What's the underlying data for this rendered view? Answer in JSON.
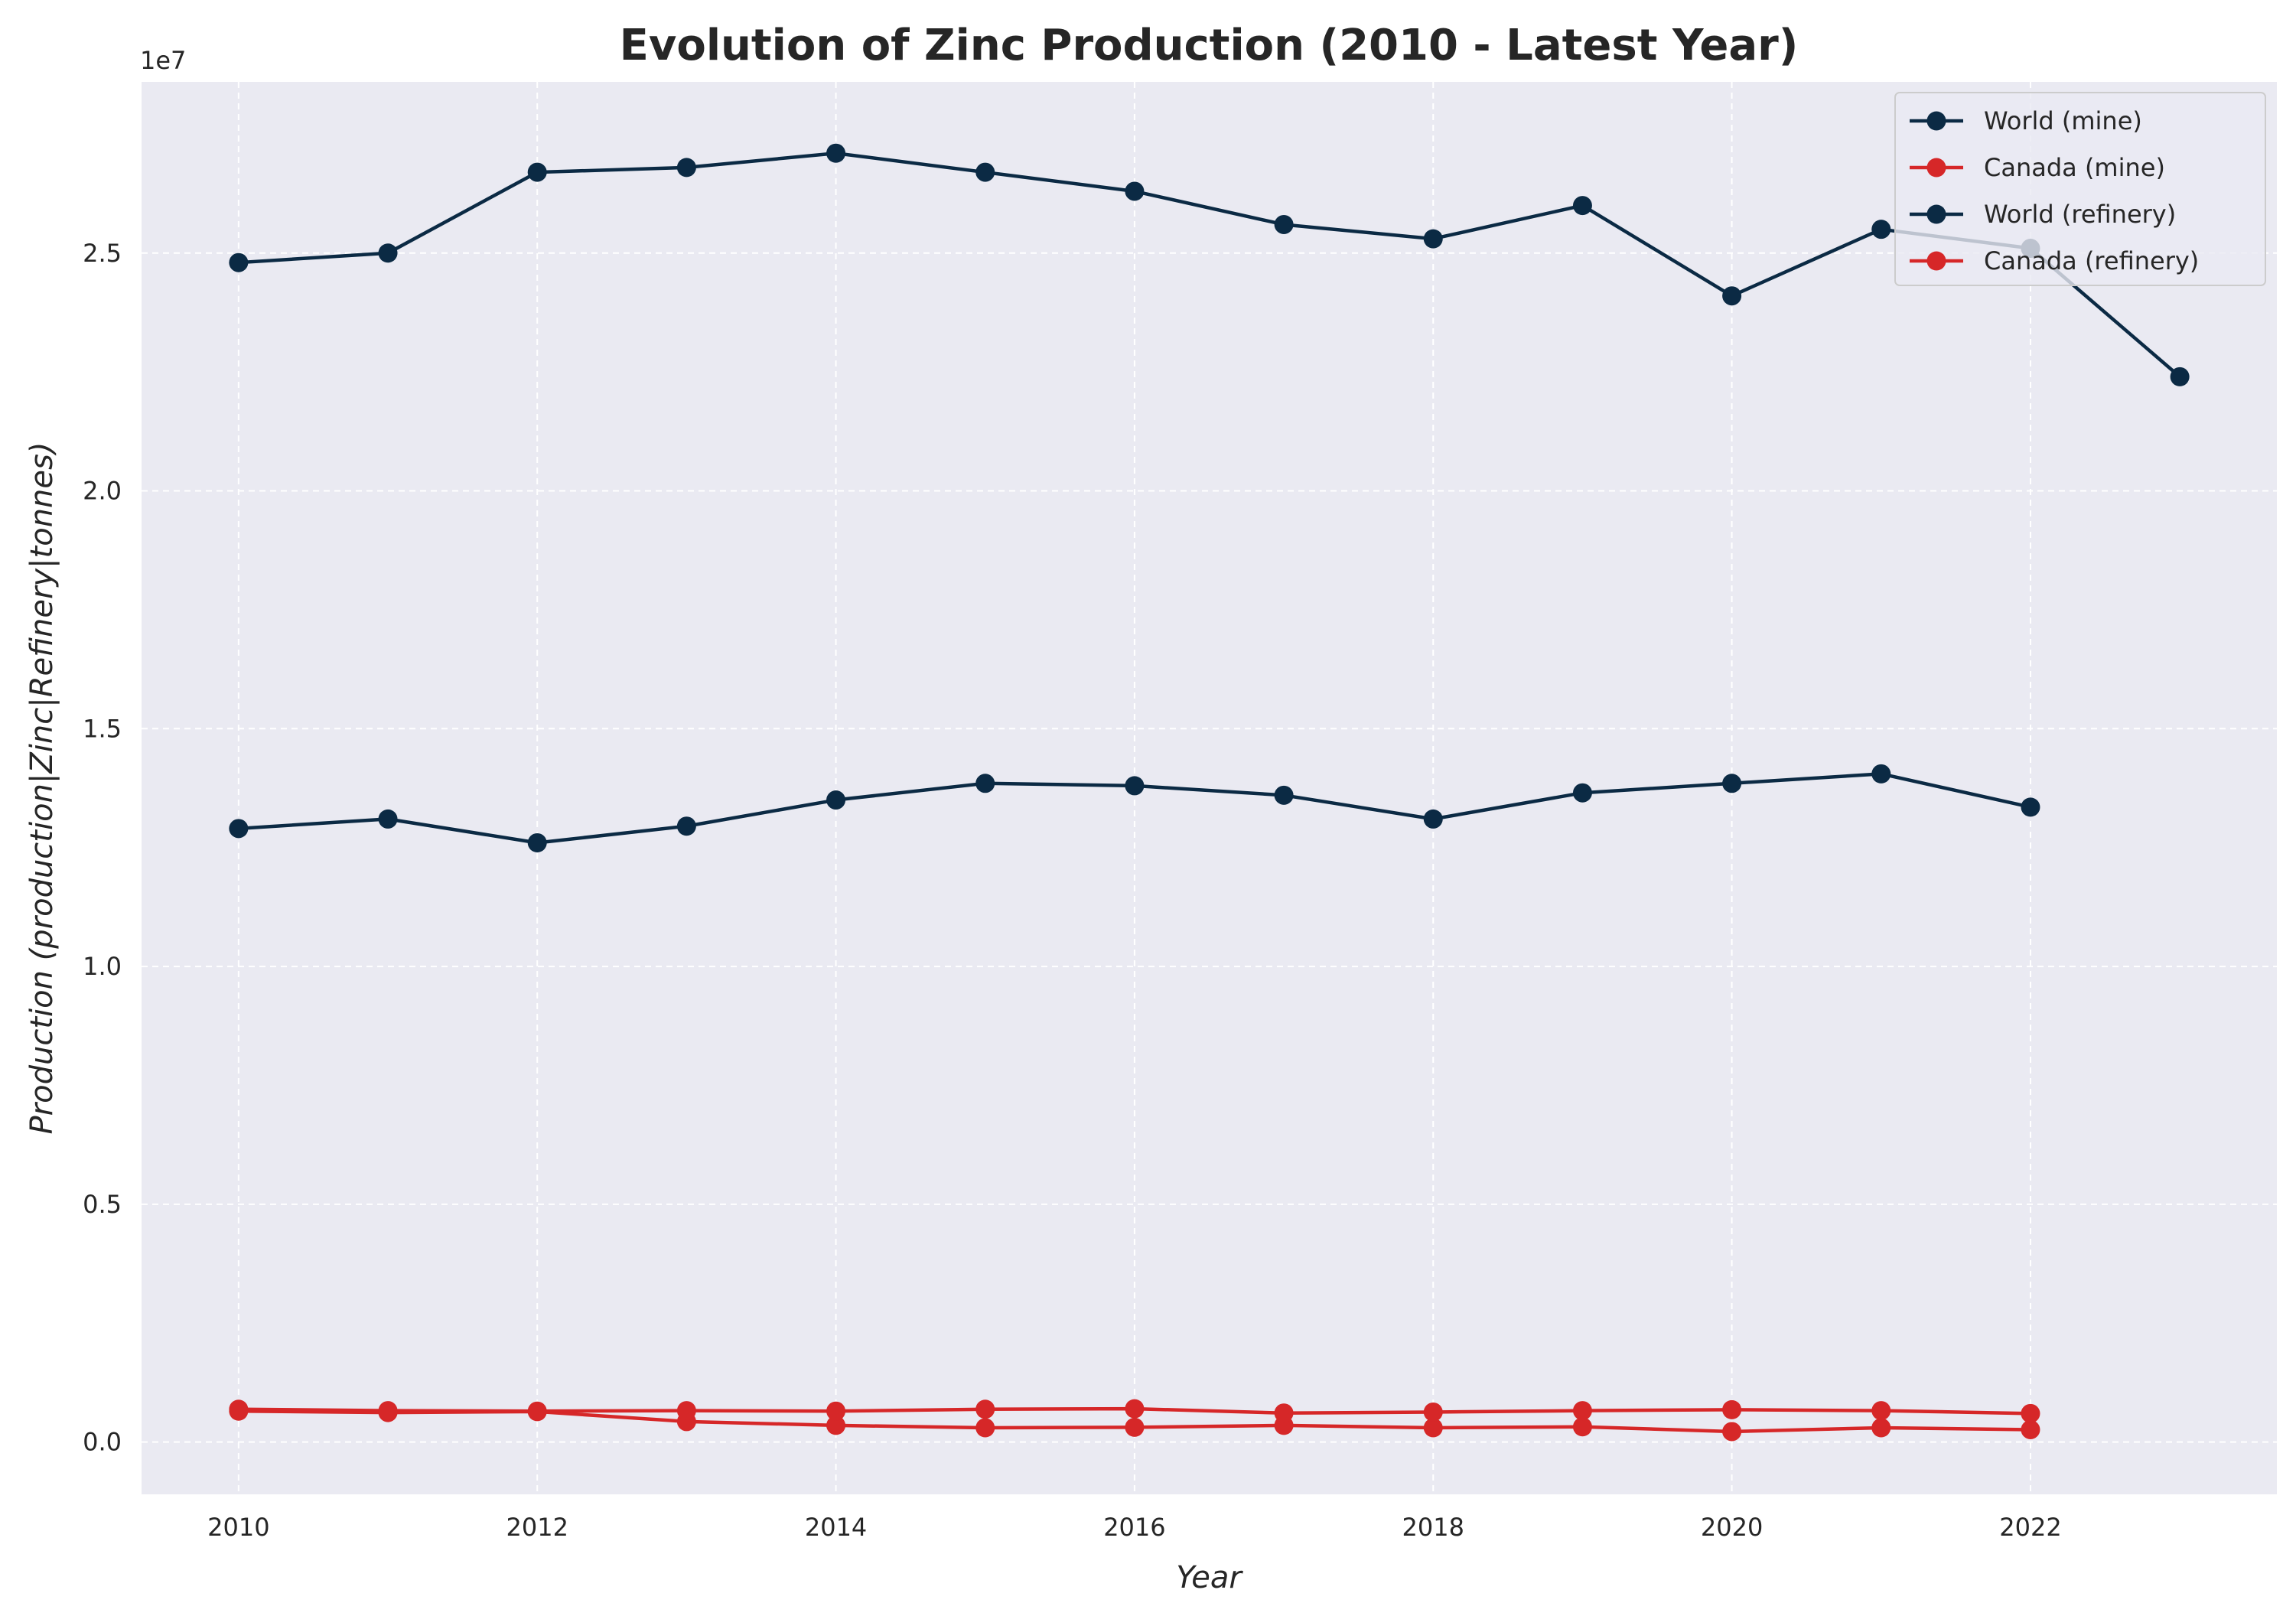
{
  "chart_data": {
    "type": "line",
    "title": "Evolution of Zinc Production (2010 - Latest Year)",
    "xlabel": "Year",
    "ylabel": "Production (production|Zinc|Refinery|tonnes)",
    "y_offset_label": "1e7",
    "xlim": [
      2009.35,
      2023.65
    ],
    "ylim": [
      -1100000,
      28600000
    ],
    "x_ticks": [
      2010,
      2012,
      2014,
      2016,
      2018,
      2020,
      2022
    ],
    "x_tick_labels": [
      "2010",
      "2012",
      "2014",
      "2016",
      "2018",
      "2020",
      "2022"
    ],
    "y_ticks": [
      0,
      5000000,
      10000000,
      15000000,
      20000000,
      25000000
    ],
    "y_tick_labels": [
      "0.0",
      "0.5",
      "1.0",
      "1.5",
      "2.0",
      "2.5"
    ],
    "grid": true,
    "grid_style": "dashed",
    "plot_background": "#eaeaf2",
    "legend_position": "top-right",
    "series": [
      {
        "name": "World (mine)",
        "color": "#0b2a44",
        "x": [
          2010,
          2011,
          2012,
          2013,
          2014,
          2015,
          2016,
          2017,
          2018,
          2019,
          2020,
          2021,
          2022,
          2023
        ],
        "y": [
          24800000,
          25000000,
          26700000,
          26800000,
          27100000,
          26700000,
          26300000,
          25600000,
          25300000,
          26000000,
          24100000,
          25500000,
          25100000,
          22400000
        ]
      },
      {
        "name": "Canada (mine)",
        "color": "#d62728",
        "x": [
          2010,
          2011,
          2012,
          2013,
          2014,
          2015,
          2016,
          2017,
          2018,
          2019,
          2020,
          2021,
          2022
        ],
        "y": [
          650000,
          620000,
          640000,
          430000,
          350000,
          300000,
          310000,
          350000,
          300000,
          320000,
          220000,
          300000,
          260000
        ]
      },
      {
        "name": "World (refinery)",
        "color": "#0b2a44",
        "x": [
          2010,
          2011,
          2012,
          2013,
          2014,
          2015,
          2016,
          2017,
          2018,
          2019,
          2020,
          2021,
          2022
        ],
        "y": [
          12900000,
          13100000,
          12600000,
          12950000,
          13500000,
          13850000,
          13800000,
          13600000,
          13100000,
          13650000,
          13850000,
          14050000,
          13350000
        ]
      },
      {
        "name": "Canada (refinery)",
        "color": "#d62728",
        "x": [
          2010,
          2011,
          2012,
          2013,
          2014,
          2015,
          2016,
          2017,
          2018,
          2019,
          2020,
          2021,
          2022
        ],
        "y": [
          690000,
          660000,
          650000,
          660000,
          650000,
          690000,
          700000,
          610000,
          630000,
          660000,
          680000,
          660000,
          600000
        ]
      }
    ]
  }
}
